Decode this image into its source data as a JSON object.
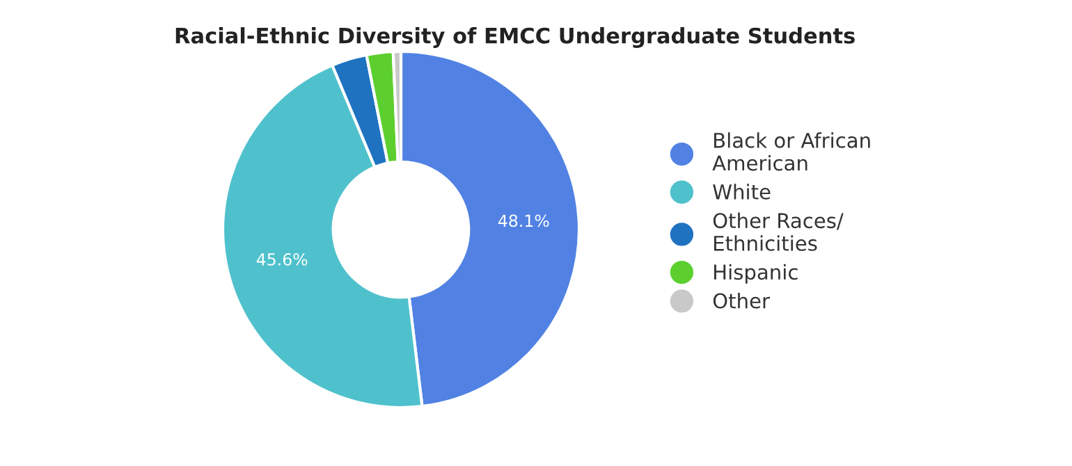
{
  "chart_data": {
    "type": "donut",
    "title": "Racial-Ethnic Diversity of EMCC Undergraduate Students",
    "categories": [
      "Black or African American",
      "White",
      "Other Races/ Ethnicities",
      "Hispanic",
      "Other"
    ],
    "values": [
      48.1,
      45.6,
      3.2,
      2.4,
      0.7
    ],
    "colors": [
      "#5182e3",
      "#4fc1cc",
      "#1f72c0",
      "#5ccf2e",
      "#c9c9c9"
    ],
    "value_labels": [
      "48.1%",
      "45.6%",
      null,
      null,
      null
    ],
    "legend": "right"
  }
}
